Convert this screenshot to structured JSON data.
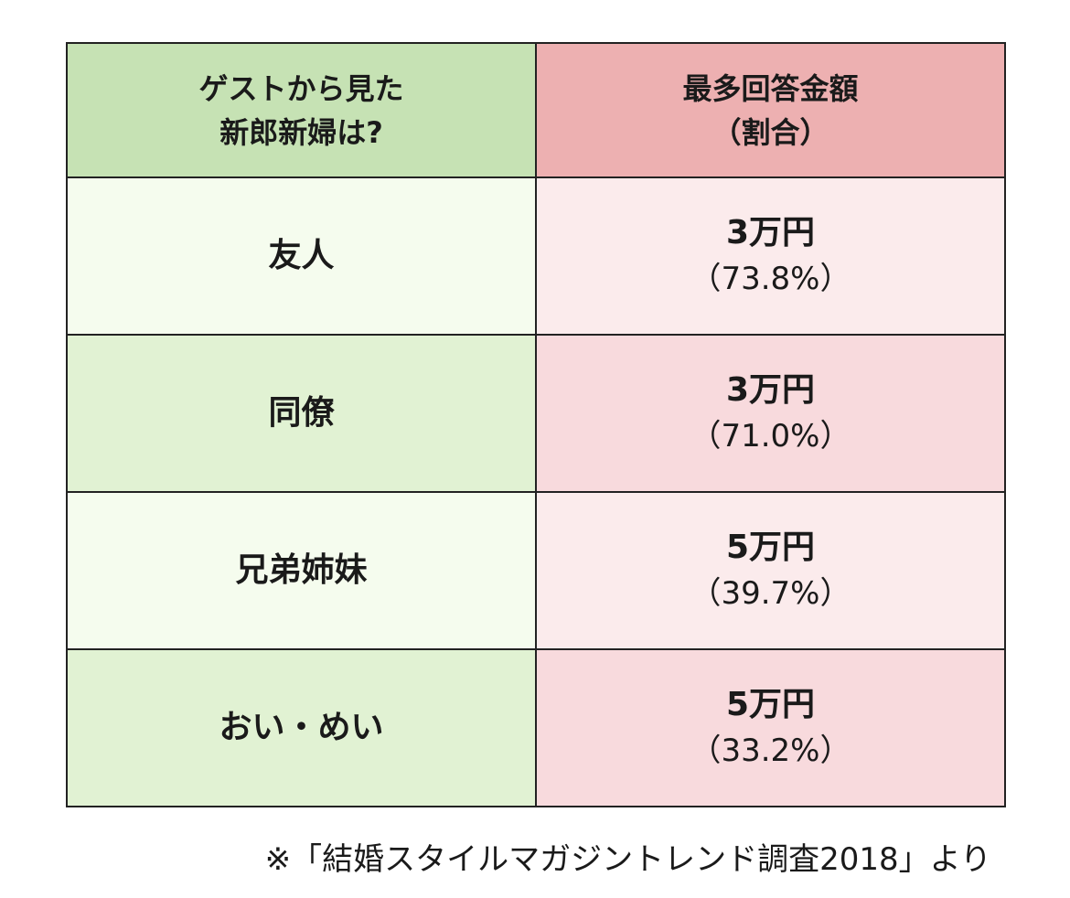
{
  "chart_data": {
    "type": "table",
    "columns": [
      {
        "line1": "ゲストから見た",
        "line2": "新郎新婦は?"
      },
      {
        "line1": "最多回答金額",
        "line2": "（割合）"
      }
    ],
    "rows": [
      {
        "relation": "友人",
        "amount": "3万円",
        "share_label": "（73.8%）",
        "share_percent": 73.8
      },
      {
        "relation": "同僚",
        "amount": "3万円",
        "share_label": "（71.0%）",
        "share_percent": 71.0
      },
      {
        "relation": "兄弟姉妹",
        "amount": "5万円",
        "share_label": "（39.7%）",
        "share_percent": 39.7
      },
      {
        "relation": "おい・めい",
        "amount": "5万円",
        "share_label": "（33.2%）",
        "share_percent": 33.2
      }
    ]
  },
  "source_note": "※「結婚スタイルマガジントレンド調査2018」より",
  "colors": {
    "header_left": "#c6e2b4",
    "header_right": "#edb0b1",
    "row_light_left": "#f5fcee",
    "row_light_right": "#fbebec",
    "row_dark_left": "#e1f2d3",
    "row_dark_right": "#f8dadd",
    "border": "#222222"
  }
}
